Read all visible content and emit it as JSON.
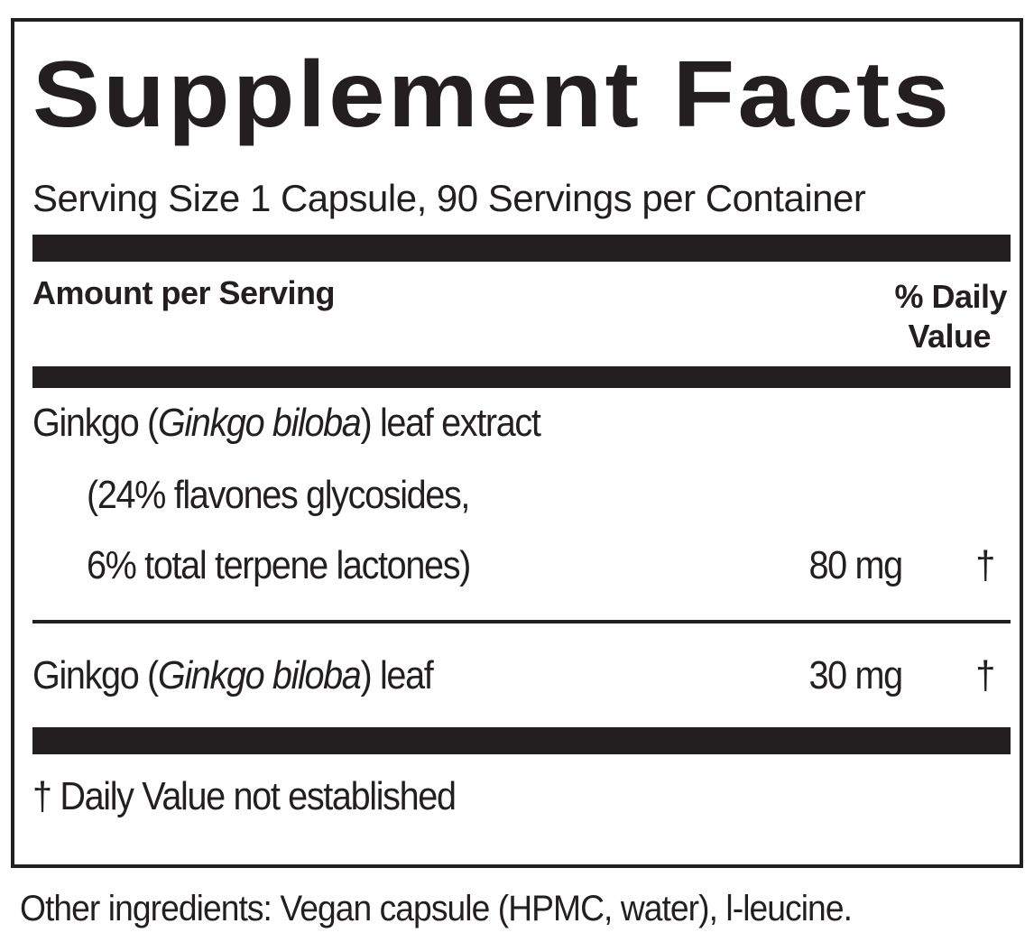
{
  "title": "Supplement Facts",
  "serving": "Serving Size 1 Capsule, 90 Servings per Container",
  "header": {
    "amount": "Amount per Serving",
    "dv_line1": "% Daily",
    "dv_line2": "Value"
  },
  "rows": [
    {
      "name_pre": "Ginkgo (",
      "name_italic": "Ginkgo biloba",
      "name_post": ") leaf extract",
      "sub1": "(24% flavones glycosides,",
      "sub2": "6% total terpene lactones)",
      "amount": "80 mg",
      "dv": "†"
    },
    {
      "name_pre": "Ginkgo (",
      "name_italic": "Ginkgo biloba",
      "name_post": ") leaf",
      "amount": "30 mg",
      "dv": "†"
    }
  ],
  "footnote": "† Daily Value not established",
  "other_ingredients": "Other ingredients: Vegan capsule (HPMC, water), l-leucine."
}
